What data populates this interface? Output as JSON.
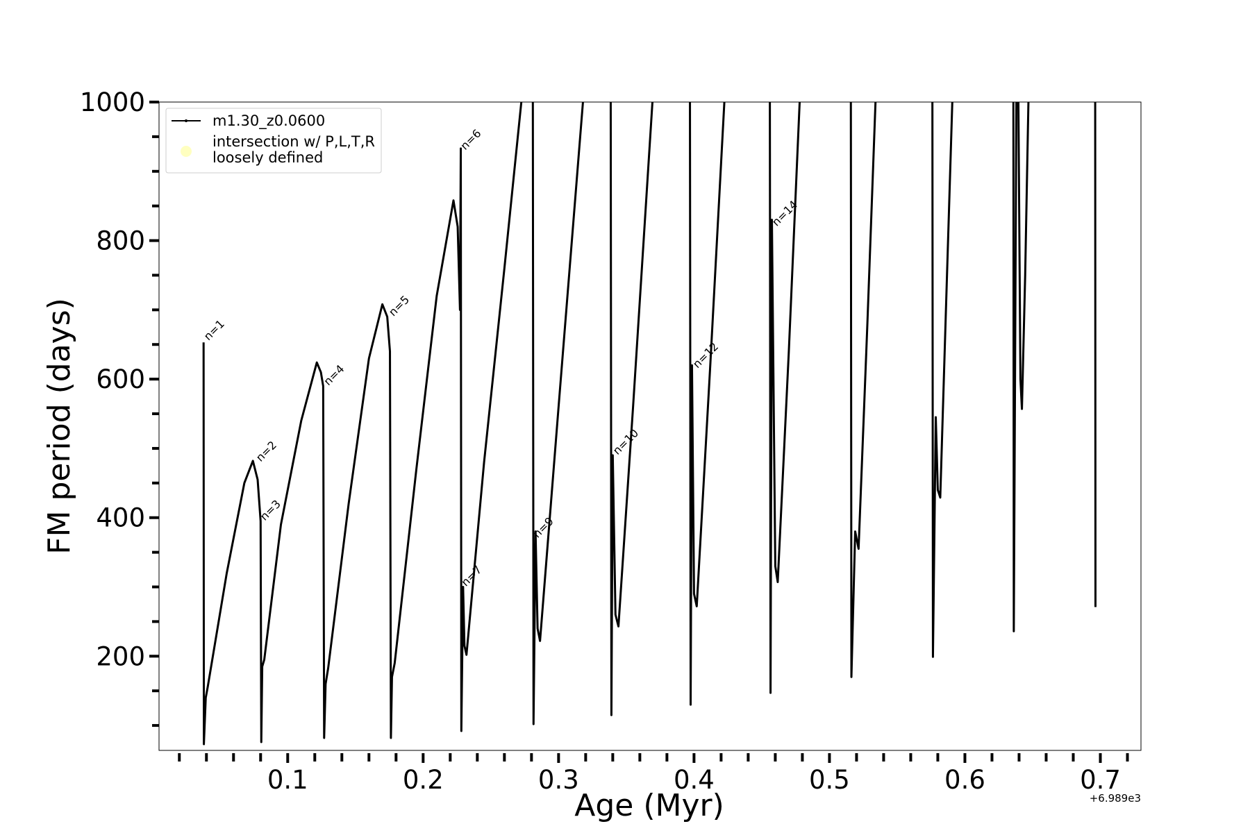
{
  "chart_data": {
    "type": "line",
    "xlabel": "Age (Myr)",
    "ylabel": "FM period (days)",
    "x_offset_label": "+6.989e3",
    "xlim": [
      0.005,
      0.73
    ],
    "ylim": [
      64,
      1000
    ],
    "xticks": [
      0.1,
      0.2,
      0.3,
      0.4,
      0.5,
      0.6,
      0.7
    ],
    "yticks": [
      200,
      400,
      600,
      800,
      1000
    ],
    "xminor_ticks": [
      0.02,
      0.04,
      0.06,
      0.08,
      0.12,
      0.14,
      0.16,
      0.18,
      0.22,
      0.24,
      0.26,
      0.28,
      0.32,
      0.34,
      0.36,
      0.38,
      0.42,
      0.44,
      0.46,
      0.48,
      0.52,
      0.54,
      0.56,
      0.58,
      0.62,
      0.64,
      0.66,
      0.68,
      0.72
    ],
    "yminor_ticks": [
      100,
      150,
      250,
      300,
      350,
      450,
      500,
      550,
      650,
      700,
      750,
      850,
      900,
      950
    ],
    "series": [
      {
        "name": "m1.30_z0.0600",
        "color": "#000000",
        "x": [
          0.0379,
          0.0381,
          0.0395,
          0.0409,
          0.055,
          0.068,
          0.0743,
          0.0778,
          0.08,
          0.0805,
          0.0812,
          0.0827,
          0.095,
          0.11,
          0.1215,
          0.1245,
          0.1262,
          0.1269,
          0.128,
          0.1299,
          0.145,
          0.16,
          0.1699,
          0.1735,
          0.1755,
          0.1762,
          0.177,
          0.179,
          0.195,
          0.21,
          0.2224,
          0.2255,
          0.2272,
          0.2278,
          0.2282,
          0.2295,
          0.2305,
          0.232,
          0.245,
          0.26,
          0.2725,
          null,
          0.281,
          0.2815,
          0.283,
          0.2845,
          0.2863,
          0.3,
          0.318,
          null,
          0.3385,
          0.339,
          0.34,
          0.342,
          0.3442,
          0.355,
          0.3693,
          null,
          0.397,
          0.3975,
          0.3985,
          0.4,
          0.402,
          0.412,
          0.4224,
          null,
          0.456,
          0.4565,
          0.4575,
          0.46,
          0.4618,
          0.47,
          0.478,
          null,
          0.5158,
          0.5162,
          0.519,
          0.5215,
          0.528,
          0.534,
          null,
          0.576,
          0.5764,
          0.5785,
          0.58,
          0.5818,
          0.586,
          0.5907,
          null,
          0.6358,
          0.6361,
          0.638,
          null,
          0.6395,
          0.641,
          0.6421,
          0.6445,
          0.6469,
          null,
          0.6962,
          0.6964
        ],
        "values": [
          653,
          73,
          140,
          155,
          320,
          450,
          482,
          455,
          395,
          76,
          185,
          195,
          390,
          540,
          624,
          610,
          590,
          82,
          160,
          183,
          420,
          630,
          708,
          690,
          640,
          82,
          170,
          190,
          470,
          720,
          858,
          820,
          700,
          933,
          92,
          300,
          215,
          202,
          480,
          760,
          1000,
          null,
          1000,
          102,
          380,
          240,
          222,
          560,
          1000,
          null,
          1000,
          115,
          490,
          260,
          243,
          560,
          1000,
          null,
          1000,
          130,
          620,
          290,
          272,
          620,
          1000,
          null,
          1000,
          147,
          830,
          330,
          307,
          640,
          1000,
          null,
          1000,
          170,
          380,
          355,
          680,
          1000,
          null,
          1000,
          199,
          545,
          440,
          429,
          700,
          1000,
          null,
          1000,
          236,
          1000,
          null,
          1000,
          600,
          557,
          750,
          1000,
          null,
          1000,
          271
        ]
      }
    ],
    "legend_marker_entry": {
      "name_lines": [
        "intersection w/ P,L,T,R",
        "loosely defined"
      ],
      "color": "#ffffc0"
    },
    "legend_position": "upper left",
    "annotations": [
      {
        "text": "n=1",
        "x": 0.04,
        "y": 655
      },
      {
        "text": "n=2",
        "x": 0.0785,
        "y": 480
      },
      {
        "text": "n=3",
        "x": 0.0815,
        "y": 395
      },
      {
        "text": "n=4",
        "x": 0.1285,
        "y": 590
      },
      {
        "text": "n=5",
        "x": 0.1765,
        "y": 690
      },
      {
        "text": "n=6",
        "x": 0.2295,
        "y": 930
      },
      {
        "text": "n=7",
        "x": 0.23,
        "y": 300
      },
      {
        "text": "n=9",
        "x": 0.283,
        "y": 370
      },
      {
        "text": "n=10",
        "x": 0.342,
        "y": 490
      },
      {
        "text": "n=12",
        "x": 0.401,
        "y": 615
      },
      {
        "text": "n=14",
        "x": 0.4595,
        "y": 820
      }
    ]
  }
}
